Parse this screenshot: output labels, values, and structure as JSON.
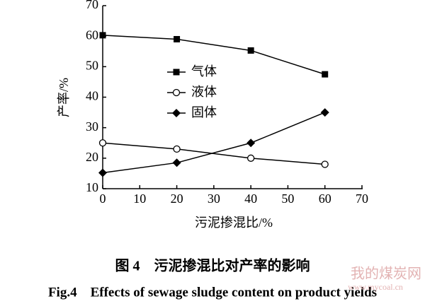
{
  "chart_data": {
    "type": "line",
    "xlabel": "污泥掺混比/%",
    "ylabel": "产率/%",
    "x": [
      0,
      20,
      40,
      60
    ],
    "series": [
      {
        "name": "气体",
        "color": "#000000",
        "marker": "square",
        "values": [
          60.3,
          59,
          55.3,
          47.5
        ]
      },
      {
        "name": "液体",
        "color": "#000000",
        "marker": "circle",
        "values": [
          25,
          23,
          20,
          18
        ]
      },
      {
        "name": "固体",
        "color": "#000000",
        "marker": "diamond",
        "values": [
          15.2,
          18.5,
          25,
          35
        ]
      }
    ],
    "xlim": [
      0,
      70
    ],
    "xticks": [
      0,
      10,
      20,
      30,
      40,
      50,
      60,
      70
    ],
    "ylim": [
      10,
      70
    ],
    "yticks": [
      10,
      20,
      30,
      40,
      50,
      60,
      70
    ],
    "grid": false,
    "caption": "图 4　污泥掺混比对产率的影响",
    "caption_en": "Fig.4　Effects of sewage sludge content on product yields",
    "watermark": "我的煤炭网",
    "watermark_url": "www.mycoal.cn"
  }
}
